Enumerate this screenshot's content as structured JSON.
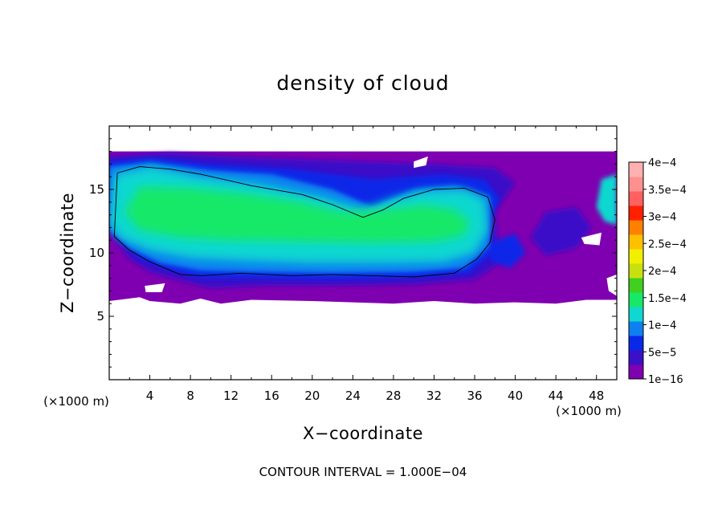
{
  "chart_data": {
    "type": "heatmap",
    "title": "density of cloud",
    "xlabel": "X−coordinate",
    "ylabel": "Z−coordinate",
    "x_unit": "(×1000 m)",
    "y_unit": "(×1000 m)",
    "xlim": [
      0,
      50
    ],
    "ylim": [
      0,
      20
    ],
    "x_ticks": [
      "4",
      "8",
      "12",
      "16",
      "20",
      "24",
      "28",
      "32",
      "36",
      "40",
      "44",
      "48"
    ],
    "y_ticks": [
      "5",
      "10",
      "15"
    ],
    "cloud_extent": {
      "x": [
        0,
        50
      ],
      "z": [
        6,
        18
      ]
    },
    "colorbar": {
      "levels": [
        "1e−16",
        "5e−5",
        "1e−4",
        "1.5e−4",
        "2e−4",
        "2.5e−4",
        "3e−4",
        "3.5e−4",
        "4e−4"
      ],
      "colors": [
        "#7f00b0",
        "#3a10c8",
        "#0a28e8",
        "#1080f0",
        "#10d8d0",
        "#18e868",
        "#40d020",
        "#c8e010",
        "#f0f000",
        "#ffc000",
        "#ff8000",
        "#ff2000",
        "#ff6060",
        "#ff9090",
        "#ffb0b0"
      ]
    },
    "contour_interval_text": "CONTOUR INTERVAL = 1.000E−04"
  }
}
